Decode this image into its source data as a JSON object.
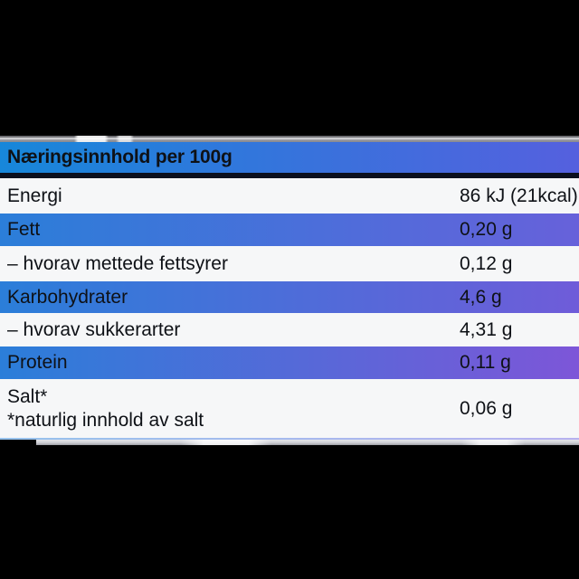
{
  "nutrition": {
    "header": "Næringsinnhold per 100g",
    "rows": [
      {
        "label": "Energi",
        "value": "86 kJ (21kcal)",
        "style": "white"
      },
      {
        "label": "Fett",
        "value": "0,20 g",
        "style": "gradient"
      },
      {
        "label": "– hvorav mettede fettsyrer",
        "value": "0,12 g",
        "style": "white"
      },
      {
        "label": "Karbohydrater",
        "value": "4,6 g",
        "style": "gradient"
      },
      {
        "label": "– hvorav sukkerarter",
        "value": "4,31 g",
        "style": "white"
      },
      {
        "label": "Protein",
        "value": "0,11 g",
        "style": "gradient"
      },
      {
        "label": "Salt*",
        "note": "*naturlig innhold av salt",
        "value": "0,06 g",
        "style": "white"
      }
    ]
  },
  "colors": {
    "background": "#000000",
    "text": "#0e1116",
    "header_start": "#1787da",
    "header_end": "#5560de",
    "row_start": "#2b7ed9",
    "fett_end": "#6761da",
    "karbo_end": "#6f5cd9",
    "protein_end": "#7d56d8",
    "row_white": "#f6f7f8",
    "divider": "#0c101e",
    "bottom_line_start": "#96c2ec",
    "bottom_line_end": "#b7b1ef"
  }
}
